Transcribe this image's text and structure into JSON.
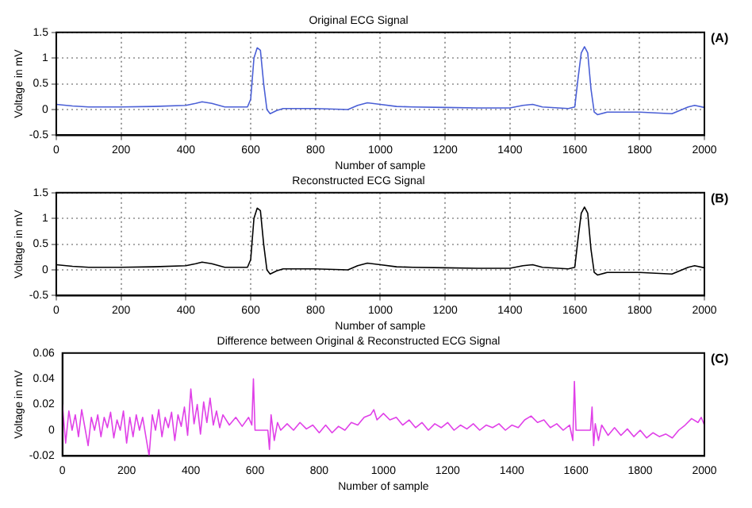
{
  "chart_data": [
    {
      "type": "line",
      "title": "Original ECG Signal",
      "xlabel": "Number of sample",
      "ylabel": "Voltage in mV",
      "annotations": [
        "(A)"
      ],
      "grid": true,
      "legend": false,
      "marker": "none",
      "color": "#4a5fd6",
      "x": [
        0,
        50,
        100,
        200,
        300,
        400,
        430,
        450,
        480,
        520,
        590,
        600,
        610,
        620,
        630,
        640,
        650,
        660,
        680,
        700,
        800,
        900,
        930,
        960,
        1000,
        1050,
        1100,
        1200,
        1300,
        1400,
        1440,
        1470,
        1500,
        1580,
        1600,
        1610,
        1620,
        1630,
        1640,
        1650,
        1660,
        1670,
        1700,
        1800,
        1900,
        1950,
        1970,
        2000
      ],
      "values": [
        0.1,
        0.07,
        0.05,
        0.05,
        0.06,
        0.08,
        0.12,
        0.15,
        0.12,
        0.05,
        0.05,
        0.2,
        1.0,
        1.2,
        1.15,
        0.5,
        0.0,
        -0.08,
        -0.02,
        0.02,
        0.02,
        0.0,
        0.08,
        0.13,
        0.1,
        0.06,
        0.05,
        0.04,
        0.03,
        0.03,
        0.08,
        0.1,
        0.05,
        0.02,
        0.05,
        0.6,
        1.1,
        1.22,
        1.1,
        0.4,
        -0.05,
        -0.1,
        -0.05,
        -0.05,
        -0.08,
        0.05,
        0.08,
        0.04
      ],
      "xlim": [
        0,
        2000
      ],
      "xticks": [
        0,
        200,
        400,
        600,
        800,
        1000,
        1200,
        1400,
        1600,
        1800,
        2000
      ],
      "ylim": [
        -0.5,
        1.5
      ],
      "yticks": [
        -0.5,
        0,
        0.5,
        1,
        1.5
      ]
    },
    {
      "type": "line",
      "title": "Reconstructed ECG Signal",
      "xlabel": "Number of sample",
      "ylabel": "Voltage in mV",
      "annotations": [
        "(B)"
      ],
      "grid": true,
      "legend": false,
      "marker": "none",
      "color": "#000000",
      "x": [
        0,
        50,
        100,
        200,
        300,
        400,
        430,
        450,
        480,
        520,
        590,
        600,
        610,
        620,
        630,
        640,
        650,
        660,
        680,
        700,
        800,
        900,
        930,
        960,
        1000,
        1050,
        1100,
        1200,
        1300,
        1400,
        1440,
        1470,
        1500,
        1580,
        1600,
        1610,
        1620,
        1630,
        1640,
        1650,
        1660,
        1670,
        1700,
        1800,
        1900,
        1950,
        1970,
        2000
      ],
      "values": [
        0.1,
        0.07,
        0.05,
        0.05,
        0.06,
        0.08,
        0.12,
        0.15,
        0.12,
        0.05,
        0.05,
        0.2,
        1.0,
        1.2,
        1.15,
        0.5,
        0.0,
        -0.08,
        -0.02,
        0.02,
        0.02,
        0.0,
        0.08,
        0.13,
        0.1,
        0.06,
        0.05,
        0.04,
        0.03,
        0.03,
        0.08,
        0.1,
        0.05,
        0.02,
        0.05,
        0.6,
        1.1,
        1.22,
        1.1,
        0.4,
        -0.05,
        -0.1,
        -0.05,
        -0.05,
        -0.08,
        0.05,
        0.08,
        0.04
      ],
      "xlim": [
        0,
        2000
      ],
      "xticks": [
        0,
        200,
        400,
        600,
        800,
        1000,
        1200,
        1400,
        1600,
        1800,
        2000
      ],
      "ylim": [
        -0.5,
        1.5
      ],
      "yticks": [
        -0.5,
        0,
        0.5,
        1,
        1.5
      ]
    },
    {
      "type": "line",
      "title": "Difference between Original & Reconstructed ECG Signal",
      "xlabel": "Number of sample",
      "ylabel": "Voltage in mV",
      "annotations": [
        "(C)"
      ],
      "grid": false,
      "legend": false,
      "marker": "none",
      "color": "#e040e8",
      "x": [
        0,
        10,
        20,
        30,
        40,
        50,
        60,
        70,
        80,
        90,
        100,
        110,
        120,
        130,
        140,
        150,
        160,
        170,
        180,
        190,
        200,
        210,
        220,
        230,
        240,
        250,
        260,
        270,
        280,
        290,
        300,
        310,
        320,
        330,
        340,
        350,
        360,
        370,
        380,
        390,
        400,
        410,
        420,
        430,
        440,
        450,
        460,
        470,
        480,
        490,
        500,
        520,
        540,
        560,
        580,
        590,
        595,
        600,
        640,
        645,
        650,
        660,
        670,
        680,
        700,
        720,
        740,
        760,
        780,
        800,
        820,
        840,
        860,
        880,
        900,
        920,
        940,
        960,
        970,
        980,
        1000,
        1020,
        1040,
        1060,
        1080,
        1100,
        1120,
        1140,
        1160,
        1180,
        1200,
        1220,
        1240,
        1260,
        1280,
        1300,
        1320,
        1340,
        1360,
        1380,
        1400,
        1420,
        1440,
        1460,
        1480,
        1500,
        1520,
        1540,
        1560,
        1580,
        1590,
        1595,
        1600,
        1645,
        1650,
        1655,
        1660,
        1670,
        1680,
        1700,
        1720,
        1740,
        1760,
        1780,
        1800,
        1820,
        1840,
        1860,
        1880,
        1900,
        1920,
        1940,
        1960,
        1980,
        1990,
        2000
      ],
      "values": [
        0.02,
        -0.01,
        0.015,
        0.0,
        0.012,
        -0.005,
        0.016,
        0.002,
        -0.012,
        0.01,
        0.0,
        0.012,
        -0.005,
        0.01,
        0.002,
        0.014,
        -0.006,
        0.008,
        0.0,
        0.015,
        -0.01,
        0.01,
        -0.005,
        0.012,
        0.0,
        0.01,
        -0.005,
        -0.02,
        0.012,
        0.0,
        0.016,
        -0.005,
        0.01,
        0.002,
        0.014,
        -0.008,
        0.012,
        0.003,
        0.018,
        -0.004,
        0.032,
        0.005,
        0.02,
        -0.003,
        0.022,
        0.006,
        0.025,
        0.004,
        0.015,
        0.002,
        0.012,
        0.004,
        0.01,
        0.003,
        0.01,
        0.004,
        0.04,
        0.0,
        0.0,
        -0.015,
        0.012,
        -0.008,
        0.006,
        0.0,
        0.005,
        0.0,
        0.006,
        0.001,
        0.004,
        -0.002,
        0.004,
        -0.002,
        0.003,
        0.0,
        0.006,
        0.004,
        0.01,
        0.012,
        0.016,
        0.008,
        0.013,
        0.008,
        0.01,
        0.004,
        0.008,
        0.002,
        0.006,
        0.0,
        0.005,
        0.002,
        0.006,
        0.0,
        0.004,
        0.001,
        0.005,
        0.0,
        0.004,
        0.002,
        0.005,
        0.0,
        0.004,
        0.002,
        0.008,
        0.011,
        0.006,
        0.008,
        0.002,
        0.005,
        0.0,
        0.004,
        -0.008,
        0.038,
        0.0,
        0.0,
        0.018,
        -0.012,
        0.005,
        -0.008,
        0.004,
        -0.004,
        0.002,
        -0.004,
        0.001,
        -0.005,
        0.0,
        -0.006,
        -0.002,
        -0.005,
        -0.003,
        -0.006,
        0.0,
        0.004,
        0.009,
        0.006,
        0.01,
        0.004
      ],
      "xlim": [
        0,
        2000
      ],
      "xticks": [
        0,
        200,
        400,
        600,
        800,
        1000,
        1200,
        1400,
        1600,
        1800,
        2000
      ],
      "ylim": [
        -0.02,
        0.06
      ],
      "yticks": [
        -0.02,
        0,
        0.02,
        0.04,
        0.06
      ]
    }
  ]
}
